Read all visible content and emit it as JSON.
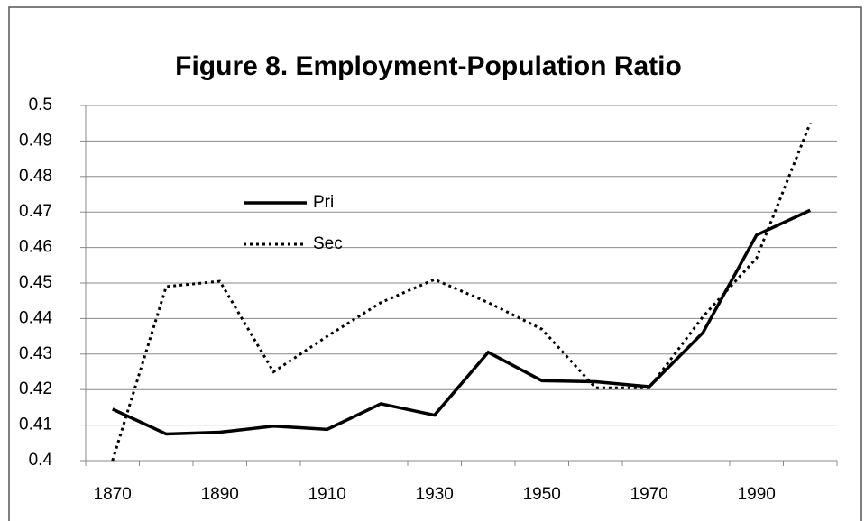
{
  "chart_data": {
    "type": "line",
    "title": "Figure 8. Employment-Population Ratio",
    "categories": [
      "1870",
      null,
      "1890",
      null,
      "1910",
      null,
      "1930",
      null,
      "1950",
      null,
      "1970",
      null,
      "1990",
      null
    ],
    "series": [
      {
        "name": "Pri",
        "color": "#000000",
        "dash": "solid",
        "values": [
          0.4145,
          0.4075,
          0.408,
          0.4097,
          0.4088,
          0.416,
          0.4128,
          0.4305,
          0.4225,
          0.4222,
          0.4208,
          0.436,
          0.4635,
          0.4705
        ]
      },
      {
        "name": "Sec",
        "color": "#000000",
        "dash": "dotted",
        "values": [
          0.4,
          0.449,
          0.4505,
          0.425,
          0.435,
          0.4445,
          0.451,
          0.4445,
          0.437,
          0.4205,
          0.4205,
          0.4405,
          0.457,
          0.495
        ]
      }
    ],
    "ylim": [
      0.4,
      0.5
    ],
    "yticks": [
      0.4,
      0.41,
      0.42,
      0.43,
      0.44,
      0.45,
      0.46,
      0.47,
      0.48,
      0.49,
      0.5
    ],
    "grid": true
  }
}
